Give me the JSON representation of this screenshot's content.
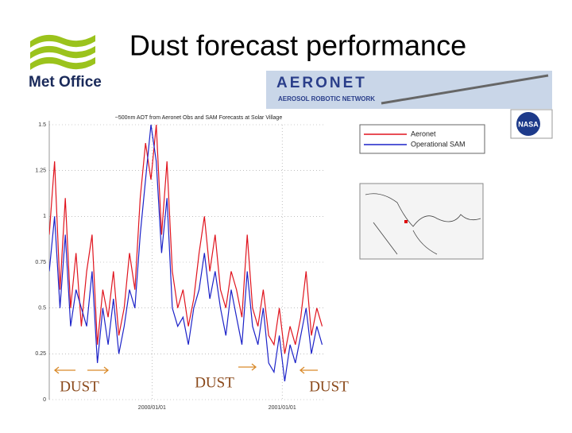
{
  "slide": {
    "title": "Dust forecast performance",
    "logo": "Met Office",
    "banner_title": "AERONET",
    "banner_subtitle": "AEROSOL ROBOTIC NETWORK",
    "badge": "NASA",
    "annotations": [
      "DUST",
      "DUST",
      "DUST"
    ]
  },
  "chart_data": {
    "type": "line",
    "title": "~500nm AOT from Aeronet Obs and SAM Forecasts at Solar Village",
    "x": [
      0,
      15,
      30,
      45,
      60,
      75,
      90,
      105,
      120,
      135,
      150,
      165,
      180,
      195,
      210,
      225,
      240,
      255,
      270,
      285,
      300,
      315,
      330,
      345,
      360,
      375,
      390,
      405,
      420,
      435,
      450,
      465,
      480,
      495,
      510,
      525,
      540,
      555,
      570,
      585,
      600,
      615,
      630,
      645,
      660,
      675,
      690,
      705,
      720,
      735,
      750,
      765
    ],
    "series": [
      {
        "name": "Aeronet",
        "color": "#e0141e",
        "values": [
          0.9,
          1.3,
          0.6,
          1.1,
          0.5,
          0.8,
          0.4,
          0.7,
          0.9,
          0.3,
          0.6,
          0.45,
          0.7,
          0.35,
          0.5,
          0.8,
          0.6,
          1.1,
          1.4,
          1.2,
          1.5,
          0.9,
          1.3,
          0.7,
          0.5,
          0.6,
          0.4,
          0.55,
          0.8,
          1.0,
          0.7,
          0.9,
          0.6,
          0.5,
          0.7,
          0.6,
          0.45,
          0.9,
          0.5,
          0.4,
          0.6,
          0.35,
          0.3,
          0.5,
          0.25,
          0.4,
          0.3,
          0.45,
          0.7,
          0.35,
          0.5,
          0.4
        ]
      },
      {
        "name": "Operational SAM",
        "color": "#1c22c8",
        "values": [
          0.7,
          1.0,
          0.5,
          0.9,
          0.4,
          0.6,
          0.5,
          0.4,
          0.7,
          0.2,
          0.5,
          0.3,
          0.55,
          0.25,
          0.4,
          0.6,
          0.5,
          0.9,
          1.2,
          1.5,
          1.3,
          0.8,
          1.1,
          0.5,
          0.4,
          0.45,
          0.3,
          0.5,
          0.6,
          0.8,
          0.55,
          0.7,
          0.5,
          0.35,
          0.6,
          0.45,
          0.3,
          0.7,
          0.4,
          0.3,
          0.5,
          0.2,
          0.15,
          0.35,
          0.1,
          0.3,
          0.2,
          0.35,
          0.5,
          0.25,
          0.4,
          0.3
        ]
      }
    ],
    "xlim": [
      0,
      775
    ],
    "xticks": [
      {
        "value": 288,
        "label": "2000/01/01"
      },
      {
        "value": 653,
        "label": "2001/01/01"
      }
    ],
    "ylim": [
      0,
      1.5
    ],
    "yticks": [
      0,
      0.25,
      0.5,
      0.75,
      1,
      1.25,
      1.5
    ],
    "grid": true
  }
}
